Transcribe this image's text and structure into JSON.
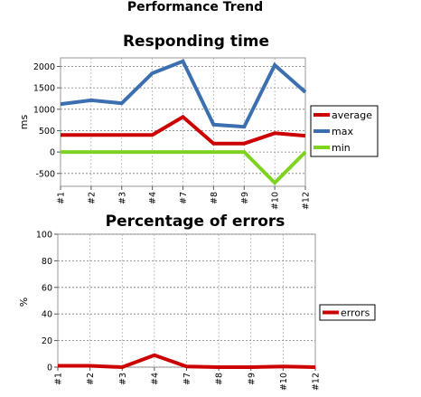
{
  "page": {
    "title": "Performance Trend"
  },
  "chart_data": [
    {
      "type": "line",
      "title": "Responding time",
      "xlabel": "",
      "ylabel": "ms",
      "categories": [
        "#1",
        "#2",
        "#3",
        "#4",
        "#7",
        "#8",
        "#9",
        "#10",
        "#12"
      ],
      "ylim": [
        -800,
        2200
      ],
      "yticks": [
        -500,
        0,
        500,
        1000,
        1500,
        2000
      ],
      "grid": true,
      "legend": "right",
      "series": [
        {
          "name": "average",
          "color": "#cc0000",
          "values": [
            400,
            400,
            400,
            400,
            820,
            200,
            200,
            440,
            380
          ]
        },
        {
          "name": "max",
          "color": "#3b6fb0",
          "values": [
            1120,
            1210,
            1140,
            1840,
            2120,
            640,
            590,
            2030,
            1400
          ]
        },
        {
          "name": "min",
          "color": "#7ed321",
          "values": [
            0,
            0,
            0,
            0,
            0,
            0,
            0,
            -720,
            0
          ]
        }
      ]
    },
    {
      "type": "line",
      "title": "Percentage of errors",
      "xlabel": "",
      "ylabel": "%",
      "categories": [
        "#1",
        "#2",
        "#3",
        "#4",
        "#7",
        "#8",
        "#9",
        "#10",
        "#12"
      ],
      "ylim": [
        0,
        100
      ],
      "yticks": [
        0,
        20,
        40,
        60,
        80,
        100
      ],
      "grid": true,
      "legend": "right",
      "series": [
        {
          "name": "errors",
          "color": "#cc0000",
          "values": [
            1,
            1,
            0,
            9,
            0.5,
            0,
            0,
            0.5,
            0
          ]
        }
      ]
    }
  ]
}
